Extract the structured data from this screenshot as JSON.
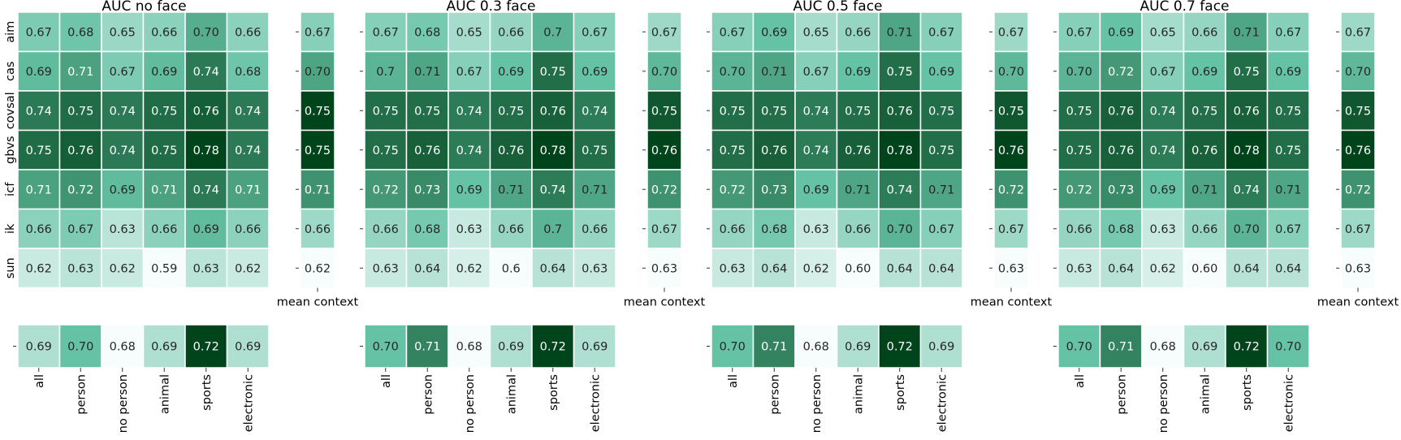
{
  "panels": [
    {
      "title": "AUC no face"
    },
    {
      "title": "AUC 0.3 face"
    },
    {
      "title": "AUC 0.5 face"
    },
    {
      "title": "AUC 0.7 face"
    }
  ],
  "colormap": {
    "low": "#f7fcfd",
    "mid": "#66c2a4",
    "high": "#00441b"
  },
  "chart_data": [
    {
      "type": "heatmap",
      "title": "AUC no face",
      "rows": [
        "aim",
        "cas",
        "covsal",
        "gbvs",
        "icf",
        "ik",
        "sun"
      ],
      "columns": [
        "all",
        "person",
        "no person",
        "animal",
        "sports",
        "electronic"
      ],
      "values": [
        [
          "0.67",
          "0.68",
          "0.65",
          "0.66",
          "0.70",
          "0.66"
        ],
        [
          "0.69",
          "0.71",
          "0.67",
          "0.69",
          "0.74",
          "0.68"
        ],
        [
          "0.74",
          "0.75",
          "0.74",
          "0.75",
          "0.76",
          "0.74"
        ],
        [
          "0.75",
          "0.76",
          "0.74",
          "0.75",
          "0.78",
          "0.74"
        ],
        [
          "0.71",
          "0.72",
          "0.69",
          "0.71",
          "0.74",
          "0.71"
        ],
        [
          "0.66",
          "0.67",
          "0.63",
          "0.66",
          "0.69",
          "0.66"
        ],
        [
          "0.62",
          "0.63",
          "0.62",
          "0.59",
          "0.63",
          "0.62"
        ]
      ],
      "mean_context": {
        "label": "mean context",
        "values": [
          "0.67",
          "0.70",
          "0.75",
          "0.75",
          "0.71",
          "0.66",
          "0.62"
        ]
      },
      "mean_model": [
        "0.69",
        "0.70",
        "0.68",
        "0.69",
        "0.72",
        "0.69"
      ]
    },
    {
      "type": "heatmap",
      "title": "AUC 0.3 face",
      "rows": [
        "aim",
        "cas",
        "covsal",
        "gbvs",
        "icf",
        "ik",
        "sun"
      ],
      "columns": [
        "all",
        "person",
        "no person",
        "animal",
        "sports",
        "electronic"
      ],
      "values": [
        [
          "0.67",
          "0.68",
          "0.65",
          "0.66",
          "0.7",
          "0.67"
        ],
        [
          "0.7",
          "0.71",
          "0.67",
          "0.69",
          "0.75",
          "0.69"
        ],
        [
          "0.75",
          "0.75",
          "0.74",
          "0.75",
          "0.76",
          "0.74"
        ],
        [
          "0.75",
          "0.76",
          "0.74",
          "0.76",
          "0.78",
          "0.75"
        ],
        [
          "0.72",
          "0.73",
          "0.69",
          "0.71",
          "0.74",
          "0.71"
        ],
        [
          "0.66",
          "0.68",
          "0.63",
          "0.66",
          "0.7",
          "0.66"
        ],
        [
          "0.63",
          "0.64",
          "0.62",
          "0.6",
          "0.64",
          "0.63"
        ]
      ],
      "mean_context": {
        "label": "mean context",
        "values": [
          "0.67",
          "0.70",
          "0.75",
          "0.76",
          "0.72",
          "0.67",
          "0.63"
        ]
      },
      "mean_model": [
        "0.70",
        "0.71",
        "0.68",
        "0.69",
        "0.72",
        "0.69"
      ]
    },
    {
      "type": "heatmap",
      "title": "AUC 0.5 face",
      "rows": [
        "aim",
        "cas",
        "covsal",
        "gbvs",
        "icf",
        "ik",
        "sun"
      ],
      "columns": [
        "all",
        "person",
        "no person",
        "animal",
        "sports",
        "electronic"
      ],
      "values": [
        [
          "0.67",
          "0.69",
          "0.65",
          "0.66",
          "0.71",
          "0.67"
        ],
        [
          "0.70",
          "0.71",
          "0.67",
          "0.69",
          "0.75",
          "0.69"
        ],
        [
          "0.75",
          "0.75",
          "0.74",
          "0.75",
          "0.76",
          "0.75"
        ],
        [
          "0.75",
          "0.76",
          "0.74",
          "0.76",
          "0.78",
          "0.75"
        ],
        [
          "0.72",
          "0.73",
          "0.69",
          "0.71",
          "0.74",
          "0.71"
        ],
        [
          "0.66",
          "0.68",
          "0.63",
          "0.66",
          "0.70",
          "0.67"
        ],
        [
          "0.63",
          "0.64",
          "0.62",
          "0.60",
          "0.64",
          "0.64"
        ]
      ],
      "mean_context": {
        "label": "mean context",
        "values": [
          "0.67",
          "0.70",
          "0.75",
          "0.76",
          "0.72",
          "0.67",
          "0.63"
        ]
      },
      "mean_model": [
        "0.70",
        "0.71",
        "0.68",
        "0.69",
        "0.72",
        "0.69"
      ]
    },
    {
      "type": "heatmap",
      "title": "AUC 0.7 face",
      "rows": [
        "aim",
        "cas",
        "covsal",
        "gbvs",
        "icf",
        "ik",
        "sun"
      ],
      "columns": [
        "all",
        "person",
        "no person",
        "animal",
        "sports",
        "electronic"
      ],
      "values": [
        [
          "0.67",
          "0.69",
          "0.65",
          "0.66",
          "0.71",
          "0.67"
        ],
        [
          "0.70",
          "0.72",
          "0.67",
          "0.69",
          "0.75",
          "0.69"
        ],
        [
          "0.75",
          "0.76",
          "0.74",
          "0.75",
          "0.76",
          "0.75"
        ],
        [
          "0.75",
          "0.76",
          "0.74",
          "0.76",
          "0.78",
          "0.75"
        ],
        [
          "0.72",
          "0.73",
          "0.69",
          "0.71",
          "0.74",
          "0.71"
        ],
        [
          "0.66",
          "0.68",
          "0.63",
          "0.66",
          "0.70",
          "0.67"
        ],
        [
          "0.63",
          "0.64",
          "0.62",
          "0.60",
          "0.64",
          "0.64"
        ]
      ],
      "mean_context": {
        "label": "mean context",
        "values": [
          "0.67",
          "0.70",
          "0.75",
          "0.76",
          "0.72",
          "0.67",
          "0.63"
        ]
      },
      "mean_model": [
        "0.70",
        "0.71",
        "0.68",
        "0.69",
        "0.72",
        "0.70"
      ]
    }
  ]
}
